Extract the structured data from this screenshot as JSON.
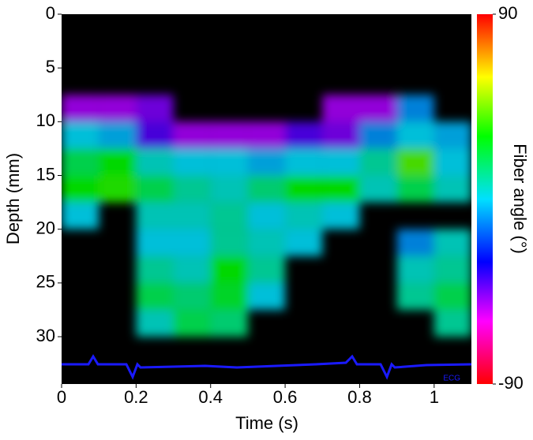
{
  "chart_data": {
    "type": "heatmap",
    "xlabel": "Time (s)",
    "ylabel": "Depth (mm)",
    "colorbar_label": "Fiber angle (°)",
    "annotation": "ECG",
    "xlim": [
      0,
      1.1
    ],
    "xticks": [
      0,
      0.2,
      0.4,
      0.6,
      0.8,
      1
    ],
    "ylim": [
      34.4,
      0
    ],
    "yticks": [
      0,
      5,
      10,
      15,
      20,
      25,
      30
    ],
    "clim": [
      -90,
      90
    ],
    "cticks": [
      -90,
      90
    ],
    "x_bins": [
      0,
      0.1,
      0.2,
      0.3,
      0.4,
      0.5,
      0.6,
      0.7,
      0.8,
      0.9,
      1.0,
      1.1
    ],
    "y_bins": [
      7.5,
      10,
      12.5,
      15,
      17.5,
      20,
      22.5,
      25,
      27.5,
      30
    ],
    "values": [
      [
        -50,
        -50,
        -45,
        null,
        null,
        null,
        null,
        -50,
        -50,
        -10,
        null
      ],
      [
        0,
        -5,
        -40,
        -50,
        -50,
        -50,
        -40,
        -45,
        -10,
        0,
        -5
      ],
      [
        20,
        30,
        5,
        0,
        0,
        -5,
        0,
        0,
        10,
        40,
        0
      ],
      [
        30,
        35,
        20,
        10,
        5,
        15,
        30,
        30,
        5,
        20,
        5
      ],
      [
        0,
        null,
        5,
        5,
        10,
        0,
        5,
        0,
        null,
        null,
        null
      ],
      [
        null,
        null,
        0,
        0,
        10,
        5,
        0,
        null,
        null,
        -10,
        5
      ],
      [
        null,
        null,
        10,
        5,
        30,
        10,
        null,
        null,
        null,
        5,
        10
      ],
      [
        null,
        null,
        20,
        15,
        25,
        0,
        null,
        null,
        null,
        10,
        20
      ],
      [
        null,
        null,
        5,
        20,
        15,
        null,
        null,
        null,
        null,
        null,
        10
      ]
    ]
  }
}
